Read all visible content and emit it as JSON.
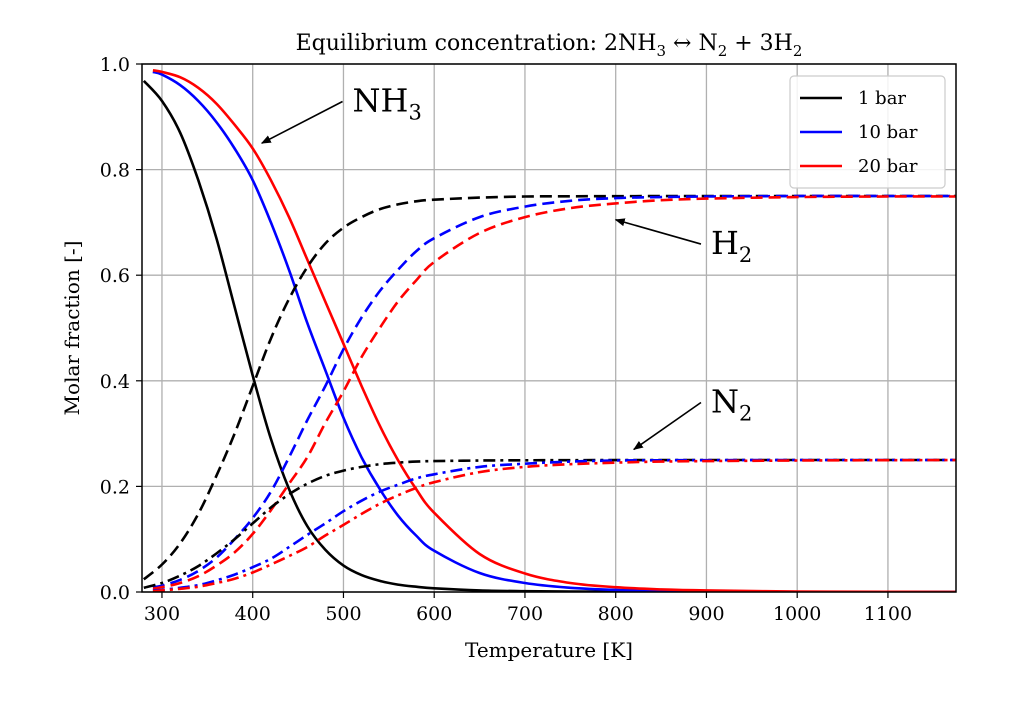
{
  "chart_data": {
    "type": "line",
    "title": {
      "prefix": "Equilibrium concentration: 2NH",
      "sub1": "3",
      "mid": " ↔ N",
      "sub2": "2",
      "mid2": " + 3H",
      "sub3": "2"
    },
    "xlabel": "Temperature [K]",
    "ylabel": "Molar fraction [-]",
    "xlim": [
      278,
      1175
    ],
    "ylim": [
      0.0,
      1.0
    ],
    "xticks": [
      300,
      400,
      500,
      600,
      700,
      800,
      900,
      1000,
      1100
    ],
    "yticks": [
      "0.0",
      "0.2",
      "0.4",
      "0.6",
      "0.8",
      "1.0"
    ],
    "grid": true,
    "legend_position": "top-right",
    "legend": [
      {
        "label": "1 bar",
        "color": "#000000"
      },
      {
        "label": "10 bar",
        "color": "#0000ff"
      },
      {
        "label": "20 bar",
        "color": "#ff0000"
      }
    ],
    "line_styles": {
      "NH3": "solid",
      "H2": "dashed",
      "N2": "dash-dot"
    },
    "x": [
      280,
      300,
      320,
      340,
      360,
      380,
      400,
      420,
      440,
      460,
      480,
      500,
      520,
      540,
      560,
      580,
      600,
      650,
      700,
      750,
      800,
      850,
      900,
      1000,
      1100,
      1175
    ],
    "series": [
      {
        "name": "NH3 1 bar",
        "species": "NH3",
        "pressure": "1 bar",
        "color": "#000000",
        "style": "solid",
        "x": [
          280,
          300,
          320,
          340,
          360,
          380,
          400,
          420,
          440,
          460,
          480,
          500,
          520,
          540,
          560,
          580,
          600,
          650,
          700,
          750,
          800,
          850,
          900,
          1000,
          1100,
          1175
        ],
        "values": [
          0.968,
          0.93,
          0.87,
          0.78,
          0.67,
          0.54,
          0.41,
          0.29,
          0.195,
          0.125,
          0.08,
          0.05,
          0.032,
          0.021,
          0.014,
          0.01,
          0.007,
          0.003,
          0.0015,
          0.0008,
          0.0005,
          0.0003,
          0.0002,
          0.0001,
          0.0,
          0.0
        ]
      },
      {
        "name": "NH3 10 bar",
        "species": "NH3",
        "pressure": "10 bar",
        "color": "#0000ff",
        "style": "solid",
        "x": [
          290,
          300,
          320,
          340,
          360,
          380,
          400,
          420,
          440,
          460,
          480,
          500,
          520,
          540,
          560,
          580,
          600,
          650,
          700,
          750,
          800,
          850,
          900,
          1000,
          1100,
          1175
        ],
        "values": [
          0.985,
          0.98,
          0.96,
          0.93,
          0.89,
          0.84,
          0.78,
          0.7,
          0.61,
          0.51,
          0.42,
          0.33,
          0.255,
          0.195,
          0.145,
          0.107,
          0.078,
          0.036,
          0.017,
          0.008,
          0.004,
          0.002,
          0.0012,
          0.0004,
          0.0001,
          0.0
        ]
      },
      {
        "name": "NH3 20 bar",
        "species": "NH3",
        "pressure": "20 bar",
        "color": "#ff0000",
        "style": "solid",
        "x": [
          290,
          300,
          320,
          340,
          360,
          380,
          400,
          420,
          440,
          460,
          480,
          500,
          520,
          540,
          560,
          580,
          600,
          650,
          700,
          750,
          800,
          850,
          900,
          1000,
          1100,
          1175
        ],
        "values": [
          0.988,
          0.985,
          0.975,
          0.955,
          0.925,
          0.885,
          0.84,
          0.78,
          0.71,
          0.63,
          0.55,
          0.47,
          0.39,
          0.315,
          0.25,
          0.195,
          0.15,
          0.072,
          0.035,
          0.017,
          0.009,
          0.005,
          0.003,
          0.001,
          0.0003,
          0.0001
        ]
      },
      {
        "name": "H2 1 bar",
        "species": "H2",
        "pressure": "1 bar",
        "color": "#000000",
        "style": "dashed",
        "x": [
          280,
          300,
          320,
          340,
          360,
          380,
          400,
          420,
          440,
          460,
          480,
          500,
          520,
          540,
          560,
          580,
          600,
          650,
          700,
          750,
          800,
          850,
          900,
          1000,
          1100,
          1175
        ],
        "values": [
          0.024,
          0.052,
          0.092,
          0.148,
          0.22,
          0.3,
          0.39,
          0.48,
          0.555,
          0.615,
          0.66,
          0.69,
          0.71,
          0.725,
          0.734,
          0.74,
          0.743,
          0.747,
          0.749,
          0.7495,
          0.7497,
          0.7498,
          0.7499,
          0.75,
          0.75,
          0.75
        ]
      },
      {
        "name": "H2 10 bar",
        "species": "H2",
        "pressure": "10 bar",
        "color": "#0000ff",
        "style": "dashed",
        "x": [
          290,
          300,
          320,
          340,
          360,
          380,
          400,
          420,
          440,
          460,
          480,
          500,
          520,
          540,
          560,
          580,
          600,
          650,
          700,
          750,
          800,
          850,
          900,
          1000,
          1100,
          1175
        ],
        "values": [
          0.009,
          0.012,
          0.023,
          0.04,
          0.065,
          0.1,
          0.14,
          0.19,
          0.255,
          0.325,
          0.39,
          0.46,
          0.52,
          0.57,
          0.61,
          0.645,
          0.67,
          0.71,
          0.73,
          0.741,
          0.746,
          0.748,
          0.749,
          0.75,
          0.75,
          0.75
        ]
      },
      {
        "name": "H2 20 bar",
        "species": "H2",
        "pressure": "20 bar",
        "color": "#ff0000",
        "style": "dashed",
        "x": [
          290,
          300,
          320,
          340,
          360,
          380,
          400,
          420,
          440,
          460,
          480,
          500,
          520,
          540,
          560,
          580,
          600,
          650,
          700,
          750,
          800,
          850,
          900,
          1000,
          1100,
          1175
        ],
        "values": [
          0.006,
          0.009,
          0.017,
          0.03,
          0.05,
          0.075,
          0.11,
          0.155,
          0.205,
          0.255,
          0.32,
          0.38,
          0.445,
          0.5,
          0.55,
          0.59,
          0.625,
          0.68,
          0.71,
          0.727,
          0.736,
          0.742,
          0.745,
          0.748,
          0.749,
          0.749
        ]
      },
      {
        "name": "N2 1 bar",
        "species": "N2",
        "pressure": "1 bar",
        "color": "#000000",
        "style": "dash-dot",
        "x": [
          280,
          300,
          320,
          340,
          360,
          380,
          400,
          420,
          440,
          460,
          480,
          500,
          520,
          540,
          560,
          580,
          600,
          650,
          700,
          750,
          800,
          850,
          900,
          1000,
          1100,
          1175
        ],
        "values": [
          0.008,
          0.017,
          0.031,
          0.049,
          0.073,
          0.1,
          0.13,
          0.16,
          0.185,
          0.205,
          0.22,
          0.23,
          0.237,
          0.242,
          0.245,
          0.247,
          0.248,
          0.249,
          0.2495,
          0.2497,
          0.2498,
          0.2499,
          0.25,
          0.25,
          0.25,
          0.25
        ]
      },
      {
        "name": "N2 10 bar",
        "species": "N2",
        "pressure": "10 bar",
        "color": "#0000ff",
        "style": "dash-dot",
        "x": [
          290,
          300,
          320,
          340,
          360,
          380,
          400,
          420,
          440,
          460,
          480,
          500,
          520,
          540,
          560,
          580,
          600,
          650,
          700,
          750,
          800,
          850,
          900,
          1000,
          1100,
          1175
        ],
        "values": [
          0.003,
          0.004,
          0.008,
          0.013,
          0.022,
          0.033,
          0.047,
          0.063,
          0.085,
          0.108,
          0.13,
          0.153,
          0.173,
          0.19,
          0.203,
          0.215,
          0.223,
          0.237,
          0.243,
          0.247,
          0.249,
          0.2495,
          0.2497,
          0.25,
          0.25,
          0.25
        ]
      },
      {
        "name": "N2 20 bar",
        "species": "N2",
        "pressure": "20 bar",
        "color": "#ff0000",
        "style": "dash-dot",
        "x": [
          290,
          300,
          320,
          340,
          360,
          380,
          400,
          420,
          440,
          460,
          480,
          500,
          520,
          540,
          560,
          580,
          600,
          650,
          700,
          750,
          800,
          850,
          900,
          1000,
          1100,
          1175
        ],
        "values": [
          0.002,
          0.003,
          0.006,
          0.01,
          0.017,
          0.025,
          0.037,
          0.052,
          0.068,
          0.085,
          0.107,
          0.127,
          0.148,
          0.167,
          0.183,
          0.197,
          0.208,
          0.227,
          0.237,
          0.242,
          0.245,
          0.247,
          0.248,
          0.249,
          0.2497,
          0.2498
        ]
      }
    ],
    "annotations": [
      {
        "id": "nh3",
        "text": "NH",
        "sub": "3",
        "target": [
          410,
          0.85
        ],
        "text_at": [
          510,
          0.91
        ]
      },
      {
        "id": "h2",
        "text": "H",
        "sub": "2",
        "target": [
          800,
          0.705
        ],
        "text_at": [
          905,
          0.64
        ]
      },
      {
        "id": "n2",
        "text": "N",
        "sub": "2",
        "target": [
          820,
          0.27
        ],
        "text_at": [
          905,
          0.34
        ]
      }
    ]
  }
}
